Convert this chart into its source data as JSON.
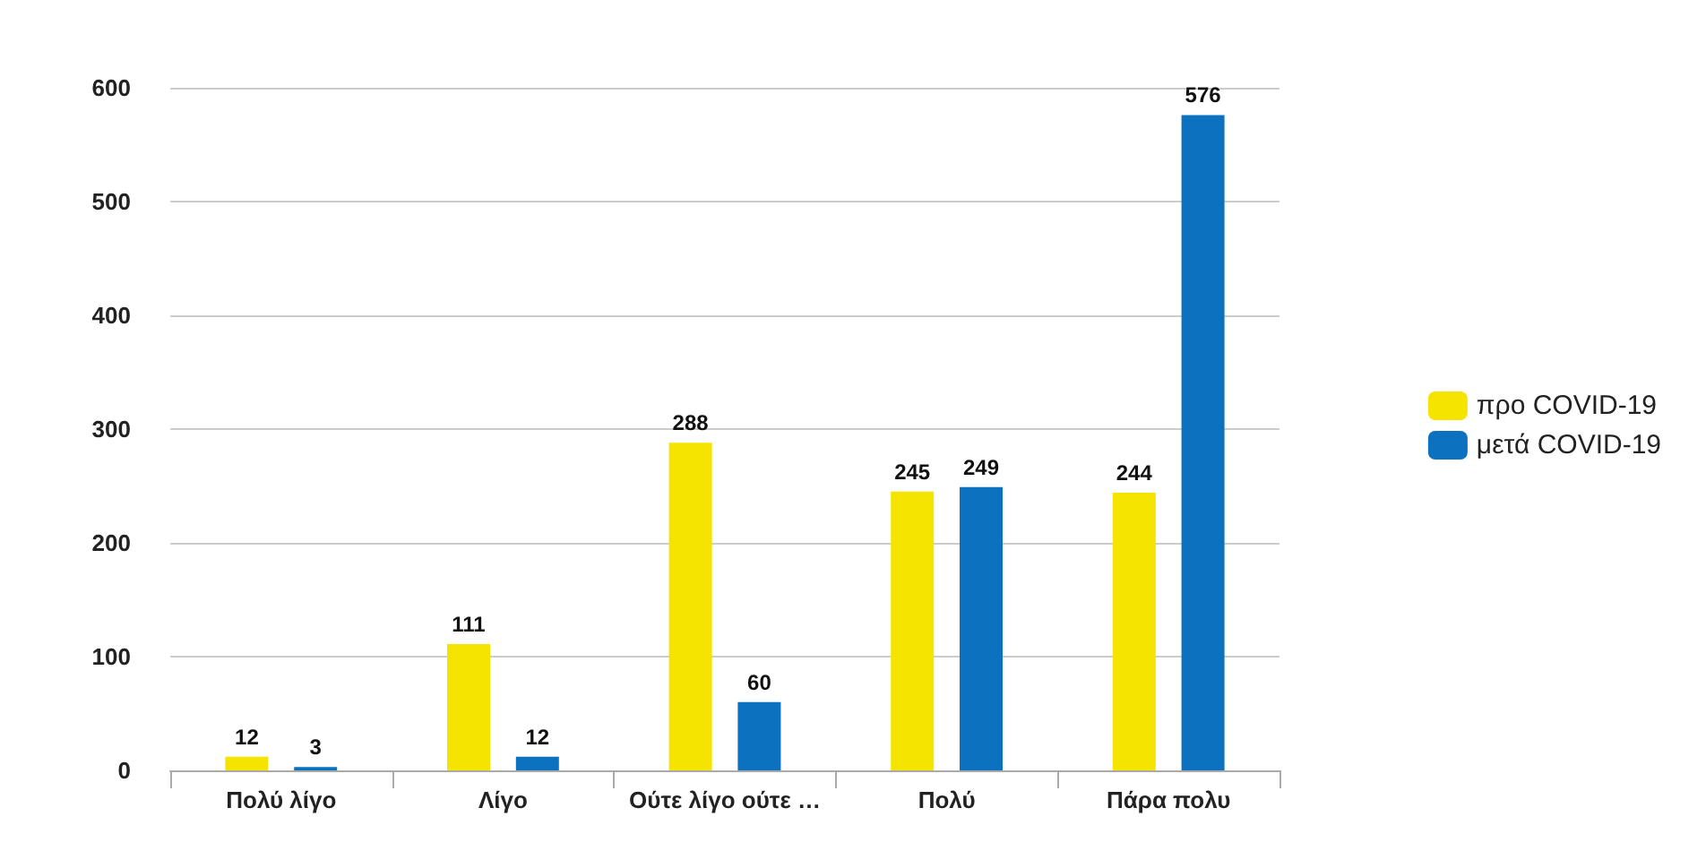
{
  "chart_data": {
    "type": "bar",
    "categories": [
      "Πολύ λίγο",
      "Λίγο",
      "Ούτε λίγο ούτε …",
      "Πολύ",
      "Πάρα πολυ"
    ],
    "series": [
      {
        "name": "προ COVID-19",
        "color": "#f5e400",
        "values": [
          12,
          111,
          288,
          245,
          244
        ]
      },
      {
        "name": "μετά COVID-19",
        "color": "#0c72c0",
        "values": [
          3,
          12,
          60,
          249,
          576
        ]
      }
    ],
    "ylim": [
      0,
      600
    ],
    "yticks": [
      0,
      100,
      200,
      300,
      400,
      500,
      600
    ],
    "grid": "y",
    "legend": "right",
    "data_labels": true
  }
}
